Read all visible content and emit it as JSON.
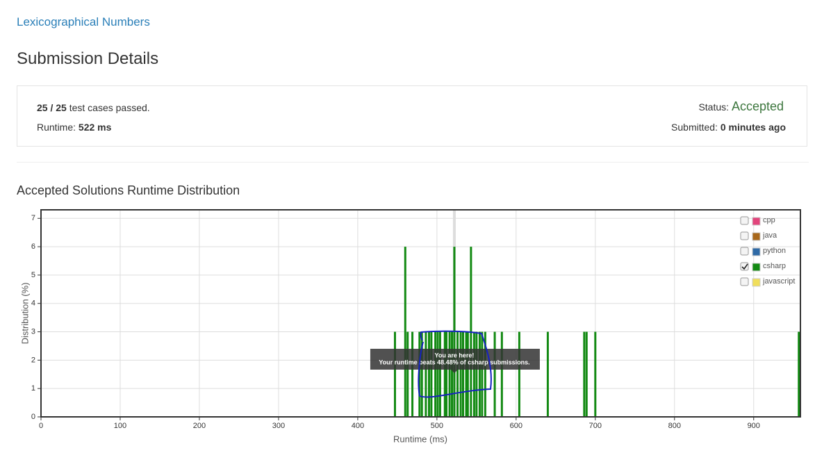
{
  "problem_link": "Lexicographical Numbers",
  "title": "Submission Details",
  "summary": {
    "passed": "25",
    "separator": "/",
    "total": "25",
    "passed_text": "test cases passed.",
    "runtime_label": "Runtime:",
    "runtime": "522 ms",
    "status_label": "Status:",
    "status": "Accepted",
    "submitted_label": "Submitted:",
    "submitted": "0 minutes ago"
  },
  "section_title": "Accepted Solutions Runtime Distribution",
  "chart_data": {
    "type": "bar",
    "xlabel": "Runtime (ms)",
    "ylabel": "Distribution (%)",
    "xlim": [
      0,
      959
    ],
    "xticks": [
      0,
      100,
      200,
      300,
      400,
      500,
      600,
      700,
      800,
      900
    ],
    "ylim": [
      0,
      7.3
    ],
    "yticks": [
      0,
      1,
      2,
      3,
      4,
      5,
      6,
      7
    ],
    "grid": true,
    "color": "#138a13",
    "x": [
      447,
      460,
      463,
      469,
      478,
      481,
      486,
      490,
      493,
      498,
      501,
      504,
      510,
      512,
      516,
      519,
      522,
      526,
      530,
      533,
      537,
      539,
      543,
      547,
      550,
      554,
      557,
      561,
      573,
      582,
      604,
      640,
      686,
      689,
      700,
      957
    ],
    "values": [
      3,
      6,
      3,
      3,
      3,
      3,
      3,
      3,
      3,
      3,
      3,
      3,
      3,
      3,
      3,
      3,
      6,
      3,
      3,
      3,
      3,
      3,
      6,
      3,
      3,
      3,
      3,
      3,
      3,
      3,
      3,
      3,
      3,
      3,
      3,
      3
    ],
    "highlight_x": 522,
    "annotation": {
      "x": 522,
      "lines": [
        "You are here!",
        "Your runtime beats 48.48% of csharp submissions."
      ]
    },
    "legend": {
      "position": "upper right",
      "items": [
        {
          "name": "cpp",
          "color": "#e2457c",
          "checked": false
        },
        {
          "name": "java",
          "color": "#a8681c",
          "checked": false
        },
        {
          "name": "python",
          "color": "#2f6aa6",
          "checked": false
        },
        {
          "name": "csharp",
          "color": "#138a13",
          "checked": true
        },
        {
          "name": "javascript",
          "color": "#f0de5c",
          "checked": false
        }
      ]
    }
  }
}
